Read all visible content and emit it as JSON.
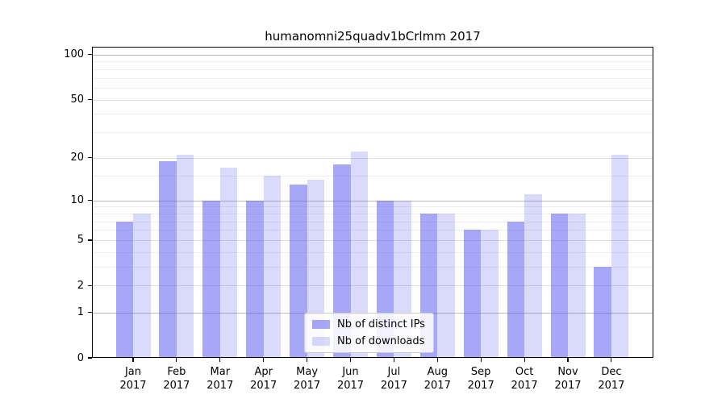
{
  "chart_data": {
    "type": "bar",
    "title": "humanomni25quadv1bCrlmm 2017",
    "categories": [
      "Jan 2017",
      "Feb 2017",
      "Mar 2017",
      "Apr 2017",
      "May 2017",
      "Jun 2017",
      "Jul 2017",
      "Aug 2017",
      "Sep 2017",
      "Oct 2017",
      "Nov 2017",
      "Dec 2017"
    ],
    "series": [
      {
        "name": "Nb of distinct IPs",
        "color": "rgba(80,80,240,0.5)",
        "values": [
          7,
          19,
          10,
          10,
          13,
          18,
          10,
          8,
          6,
          7,
          8,
          3
        ]
      },
      {
        "name": "Nb of downloads",
        "color": "rgba(80,80,240,0.21)",
        "values": [
          8,
          21,
          17,
          15,
          14,
          22,
          10,
          8,
          6,
          11,
          8,
          21
        ]
      }
    ],
    "xlabel": "",
    "ylabel": "",
    "yscale": "log1p",
    "ylim": [
      0,
      113
    ],
    "yticks": [
      0,
      1,
      2,
      5,
      10,
      20,
      50,
      100
    ],
    "ytick_levels": {
      "major": [
        1,
        10,
        100
      ],
      "secondary": [
        2,
        5,
        20,
        50
      ],
      "minor": [
        3,
        4,
        6,
        7,
        8,
        9,
        15,
        30,
        40,
        60,
        70,
        80,
        90
      ]
    },
    "grid": true,
    "legend_position": "lower center"
  },
  "colors": {
    "grid_major": "#bcbcbc",
    "grid_secondary": "#dedede",
    "grid_minor": "#eeeeee",
    "axis": "#000000",
    "legend_border": "#cccccc"
  }
}
